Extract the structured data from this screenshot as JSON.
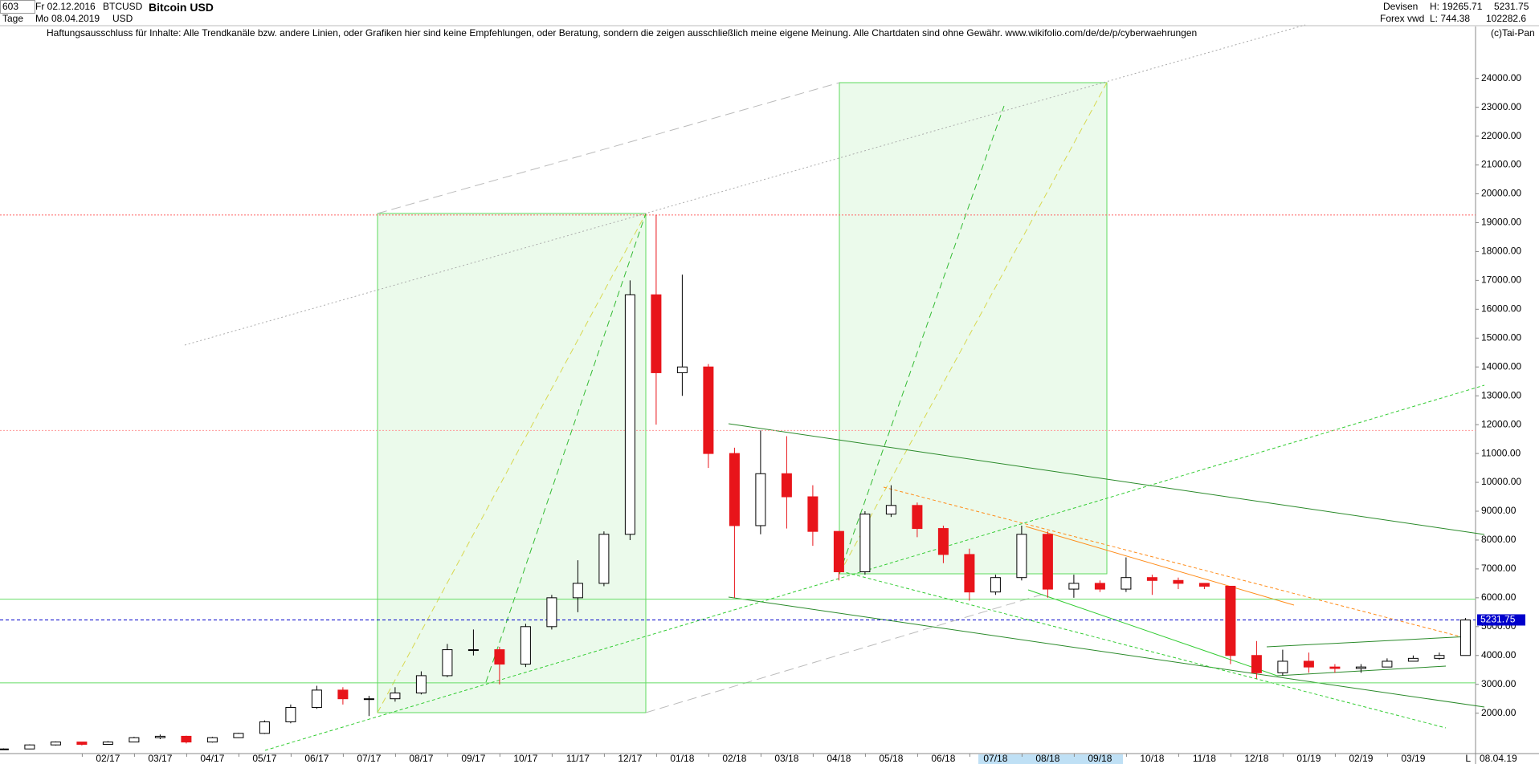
{
  "header": {
    "id": "603",
    "from": "Fr 02.12.2016",
    "symbol": "BTCUSD",
    "name": "Bitcoin USD",
    "period": "Tage",
    "to": "Mo 08.04.2019",
    "currency": "USD",
    "market": "Devisen",
    "source": "Forex vwd",
    "high": "H: 19265.71",
    "low": "L: 744.38",
    "last": "5231.75",
    "volume": "102282.6"
  },
  "disclaimer": "Haftungsausschluss für Inhalte: Alle Trendkanäle bzw. andere Linien, oder Grafiken hier sind keine Empfehlungen, oder Beratung, sondern die zeigen ausschließlich meine eigene Meinung. Alle Chartdaten sind ohne Gewähr.  www.wikifolio.com/de/de/p/cyberwaehrungen",
  "copyright": "(c)Tai-Pan",
  "chart_data": {
    "type": "candlestick",
    "x_axis_labels": [
      "02/17",
      "03/17",
      "04/17",
      "05/17",
      "06/17",
      "07/17",
      "08/17",
      "09/17",
      "10/17",
      "11/17",
      "12/17",
      "01/18",
      "02/18",
      "03/18",
      "04/18",
      "05/18",
      "06/18",
      "07/18",
      "08/18",
      "09/18",
      "10/18",
      "11/18",
      "12/18",
      "01/19",
      "02/19",
      "03/19"
    ],
    "open": [
      750,
      760,
      900,
      1000,
      920,
      1000,
      1150,
      1200,
      1000,
      1150,
      1300,
      1700,
      2200,
      2800,
      2500,
      2500,
      2700,
      3300,
      4200,
      4200,
      3700,
      5000,
      6000,
      6500,
      8200,
      16500,
      13800,
      14000,
      11000,
      8500,
      10300,
      9500,
      8300,
      6900,
      8900,
      9200,
      8400,
      7500,
      6200,
      6700,
      8200,
      6300,
      6500,
      6300,
      6700,
      6600,
      6500,
      6400,
      4000,
      3400,
      3800,
      3600,
      3550,
      3600,
      3800,
      3900,
      4000
    ],
    "high": [
      780,
      920,
      1020,
      1000,
      1030,
      1180,
      1260,
      1220,
      1180,
      1320,
      1750,
      2300,
      2950,
      2900,
      2600,
      2900,
      3450,
      4400,
      4900,
      4300,
      5100,
      6100,
      7300,
      8300,
      17000,
      19266,
      17200,
      14100,
      11200,
      11800,
      11600,
      9900,
      8300,
      9000,
      9900,
      9300,
      8500,
      7700,
      6800,
      8500,
      8300,
      6800,
      6600,
      7400,
      6800,
      6700,
      6500,
      6400,
      4500,
      4200,
      4100,
      3700,
      3700,
      3900,
      4000,
      4100,
      5300
    ],
    "low": [
      740,
      750,
      880,
      880,
      910,
      990,
      1100,
      950,
      980,
      1140,
      1280,
      1650,
      2150,
      2300,
      1900,
      2400,
      2650,
      3250,
      4000,
      3000,
      3600,
      4900,
      5500,
      6400,
      8000,
      12000,
      13000,
      10500,
      6000,
      8200,
      8400,
      7800,
      6600,
      6800,
      8800,
      8100,
      7200,
      5900,
      6100,
      6600,
      6000,
      6000,
      6200,
      6200,
      6100,
      6300,
      6300,
      3700,
      3200,
      3300,
      3400,
      3400,
      3400,
      3600,
      3800,
      3850,
      4000
    ],
    "close": [
      760,
      900,
      1000,
      920,
      1000,
      1150,
      1200,
      1000,
      1150,
      1300,
      1700,
      2200,
      2800,
      2500,
      2500,
      2700,
      3300,
      4200,
      4200,
      3700,
      5000,
      6000,
      6500,
      8200,
      16500,
      13800,
      14000,
      11000,
      8500,
      10300,
      9500,
      8300,
      6900,
      8900,
      9200,
      8400,
      7500,
      6200,
      6700,
      8200,
      6300,
      6500,
      6300,
      6700,
      6600,
      6500,
      6400,
      4000,
      3400,
      3800,
      3600,
      3550,
      3600,
      3800,
      3900,
      4000,
      5230
    ],
    "up_color": "#000000",
    "down_color": "#e8141a",
    "ylim": [
      600,
      25800
    ],
    "yticks": [
      {
        "value": 2000,
        "label": "2000.00"
      },
      {
        "value": 3000,
        "label": "3000.00"
      },
      {
        "value": 4000,
        "label": "4000.00"
      },
      {
        "value": 5000,
        "label": "5000.00"
      },
      {
        "value": 6000,
        "label": "6000.00"
      },
      {
        "value": 7000,
        "label": "7000.00"
      },
      {
        "value": 8000,
        "label": "8000.00"
      },
      {
        "value": 9000,
        "label": "9000.00"
      },
      {
        "value": 10000,
        "label": "10000.00"
      },
      {
        "value": 11000,
        "label": "11000.00"
      },
      {
        "value": 12000,
        "label": "12000.00"
      },
      {
        "value": 13000,
        "label": "13000.00"
      },
      {
        "value": 14000,
        "label": "14000.00"
      },
      {
        "value": 15000,
        "label": "15000.00"
      },
      {
        "value": 16000,
        "label": "16000.00"
      },
      {
        "value": 17000,
        "label": "17000.00"
      },
      {
        "value": 18000,
        "label": "18000.00"
      },
      {
        "value": 19000,
        "label": "19000.00"
      },
      {
        "value": 20000,
        "label": "20000.00"
      },
      {
        "value": 21000,
        "label": "21000.00"
      },
      {
        "value": 22000,
        "label": "22000.00"
      },
      {
        "value": 23000,
        "label": "23000.00"
      },
      {
        "value": 24000,
        "label": "24000.00"
      }
    ],
    "hlines": [
      {
        "value": 19266,
        "color": "#ff6666"
      },
      {
        "value": 11800,
        "color": "#ff9999"
      },
      {
        "value": 5950,
        "color": "#66dd66"
      },
      {
        "value": 3050,
        "color": "#66dd66"
      }
    ],
    "last_price": {
      "value": 5231.75,
      "label": "5231.75",
      "color": "#0000cc"
    },
    "end_date": "08.04.19",
    "scale_mode": "L"
  }
}
